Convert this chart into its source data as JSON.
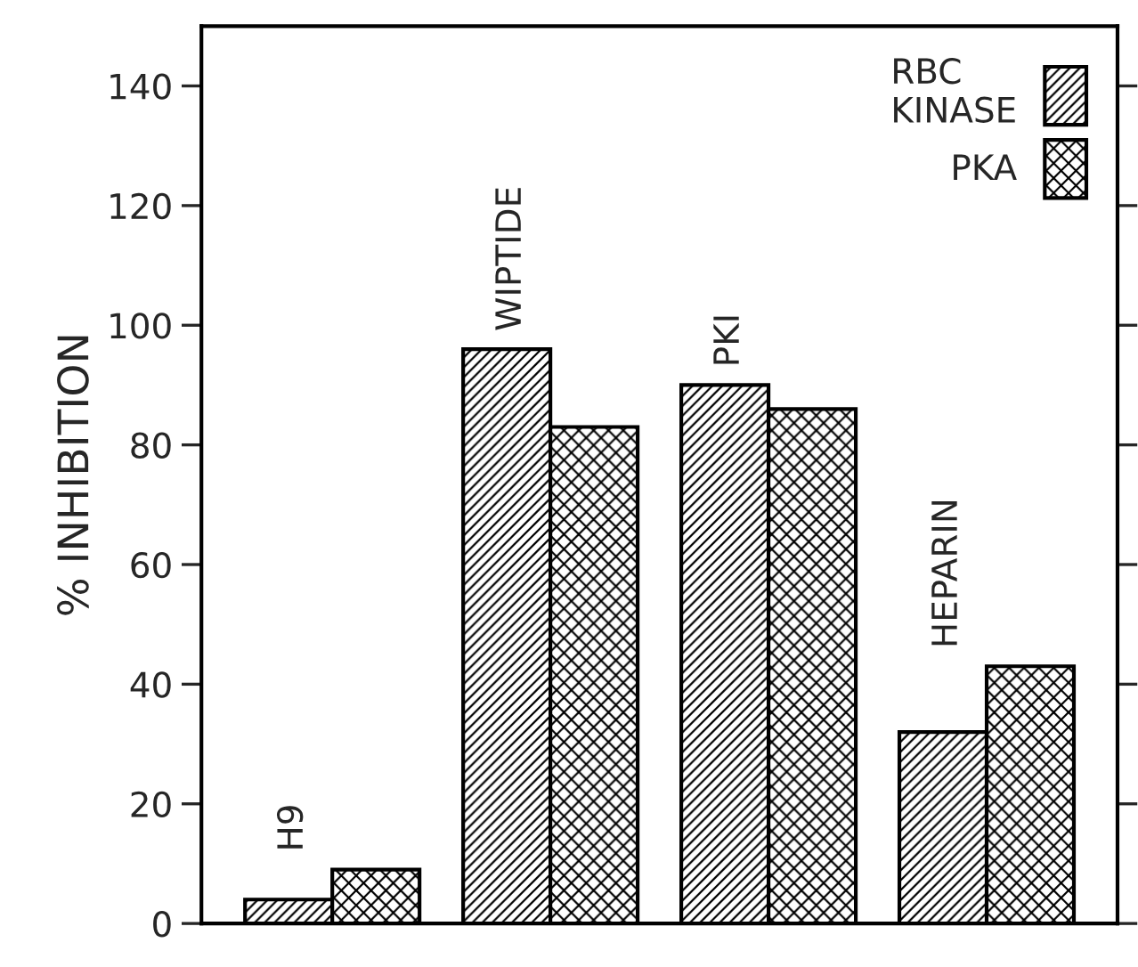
{
  "chart_data": {
    "type": "bar",
    "ylabel": "% INHIBITION",
    "categories": [
      "H9",
      "WIPTIDE",
      "PKI",
      "HEPARIN"
    ],
    "series": [
      {
        "name": "RBC\nKINASE",
        "color": "#000000",
        "values": [
          4,
          96,
          90,
          32
        ]
      },
      {
        "name": "PKA",
        "color": "#000000",
        "values": [
          9,
          83,
          86,
          43
        ]
      }
    ],
    "ylim": [
      0,
      150
    ],
    "yticks": [
      0,
      20,
      40,
      60,
      80,
      100,
      120,
      140
    ],
    "tick_labels": "y",
    "legend": "top right",
    "grid": false
  }
}
